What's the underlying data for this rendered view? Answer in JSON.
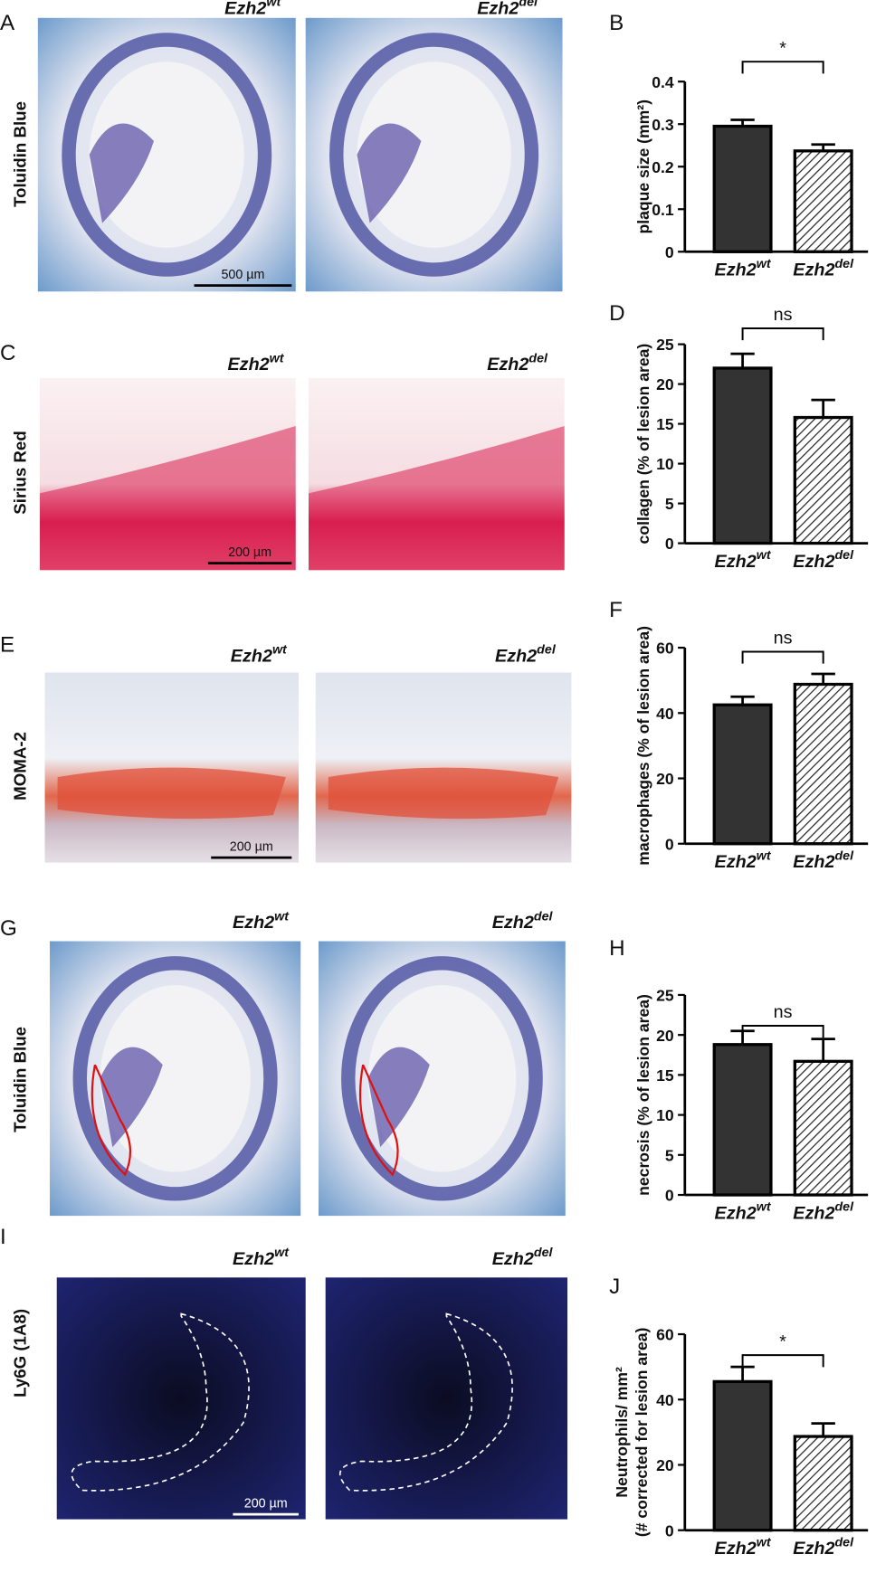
{
  "panels": [
    {
      "letter": "A",
      "stain": "Toluidin Blue",
      "labels": [
        "Ezh2wt",
        "Ezh2del"
      ],
      "scale_bar": "500 µm"
    },
    {
      "letter": "C",
      "stain": "Sirius Red",
      "labels": [
        "Ezh2wt",
        "Ezh2del"
      ],
      "scale_bar": "200 µm"
    },
    {
      "letter": "E",
      "stain": "MOMA-2",
      "labels": [
        "Ezh2wt",
        "Ezh2del"
      ],
      "scale_bar": "200 µm"
    },
    {
      "letter": "G",
      "stain": "Toluidin Blue",
      "labels": [
        "Ezh2wt",
        "Ezh2del"
      ]
    },
    {
      "letter": "I",
      "stain": "Ly6G (1A8)",
      "labels": [
        "Ezh2wt",
        "Ezh2del"
      ],
      "scale_bar": "200 µm"
    }
  ],
  "chart_data": [
    {
      "type": "bar",
      "panel": "B",
      "ylabel": "plaque size (mm²)",
      "categories": [
        "Ezh2wt",
        "Ezh2del"
      ],
      "values": [
        0.295,
        0.237
      ],
      "errors": [
        0.015,
        0.015
      ],
      "colors": [
        "#333333",
        "#ffffff"
      ],
      "hatch": [
        false,
        true
      ],
      "ylim": [
        0,
        0.4
      ],
      "yticks": [
        0,
        0.1,
        0.2,
        0.3,
        0.4
      ],
      "significance": "*"
    },
    {
      "type": "bar",
      "panel": "D",
      "ylabel": "collagen (% of lesion area)",
      "categories": [
        "Ezh2wt",
        "Ezh2del"
      ],
      "values": [
        22.0,
        15.8
      ],
      "errors": [
        1.8,
        2.2
      ],
      "colors": [
        "#333333",
        "#ffffff"
      ],
      "hatch": [
        false,
        true
      ],
      "ylim": [
        0,
        25
      ],
      "yticks": [
        0,
        5,
        10,
        15,
        20,
        25
      ],
      "significance": "ns"
    },
    {
      "type": "bar",
      "panel": "F",
      "ylabel": "macrophages (% of lesion area)",
      "categories": [
        "Ezh2wt",
        "Ezh2del"
      ],
      "values": [
        42.5,
        48.8
      ],
      "errors": [
        2.5,
        3.2
      ],
      "colors": [
        "#333333",
        "#ffffff"
      ],
      "hatch": [
        false,
        true
      ],
      "ylim": [
        0,
        60
      ],
      "yticks": [
        0,
        20,
        40,
        60
      ],
      "significance": "ns"
    },
    {
      "type": "bar",
      "panel": "H",
      "ylabel": "necrosis (% of lesion area)",
      "categories": [
        "Ezh2wt",
        "Ezh2del"
      ],
      "values": [
        18.8,
        16.7
      ],
      "errors": [
        1.7,
        2.8
      ],
      "colors": [
        "#333333",
        "#ffffff"
      ],
      "hatch": [
        false,
        true
      ],
      "ylim": [
        0,
        25
      ],
      "yticks": [
        0,
        5,
        10,
        15,
        20,
        25
      ],
      "significance": "ns"
    },
    {
      "type": "bar",
      "panel": "J",
      "ylabel": [
        "Neutrophils/ mm²",
        "(# corrected for lesion area)"
      ],
      "categories": [
        "Ezh2wt",
        "Ezh2del"
      ],
      "values": [
        45.5,
        28.7
      ],
      "errors": [
        4.5,
        4.0
      ],
      "colors": [
        "#333333",
        "#ffffff"
      ],
      "hatch": [
        false,
        true
      ],
      "ylim": [
        0,
        60
      ],
      "yticks": [
        0,
        20,
        40,
        60
      ],
      "significance": "*"
    }
  ]
}
